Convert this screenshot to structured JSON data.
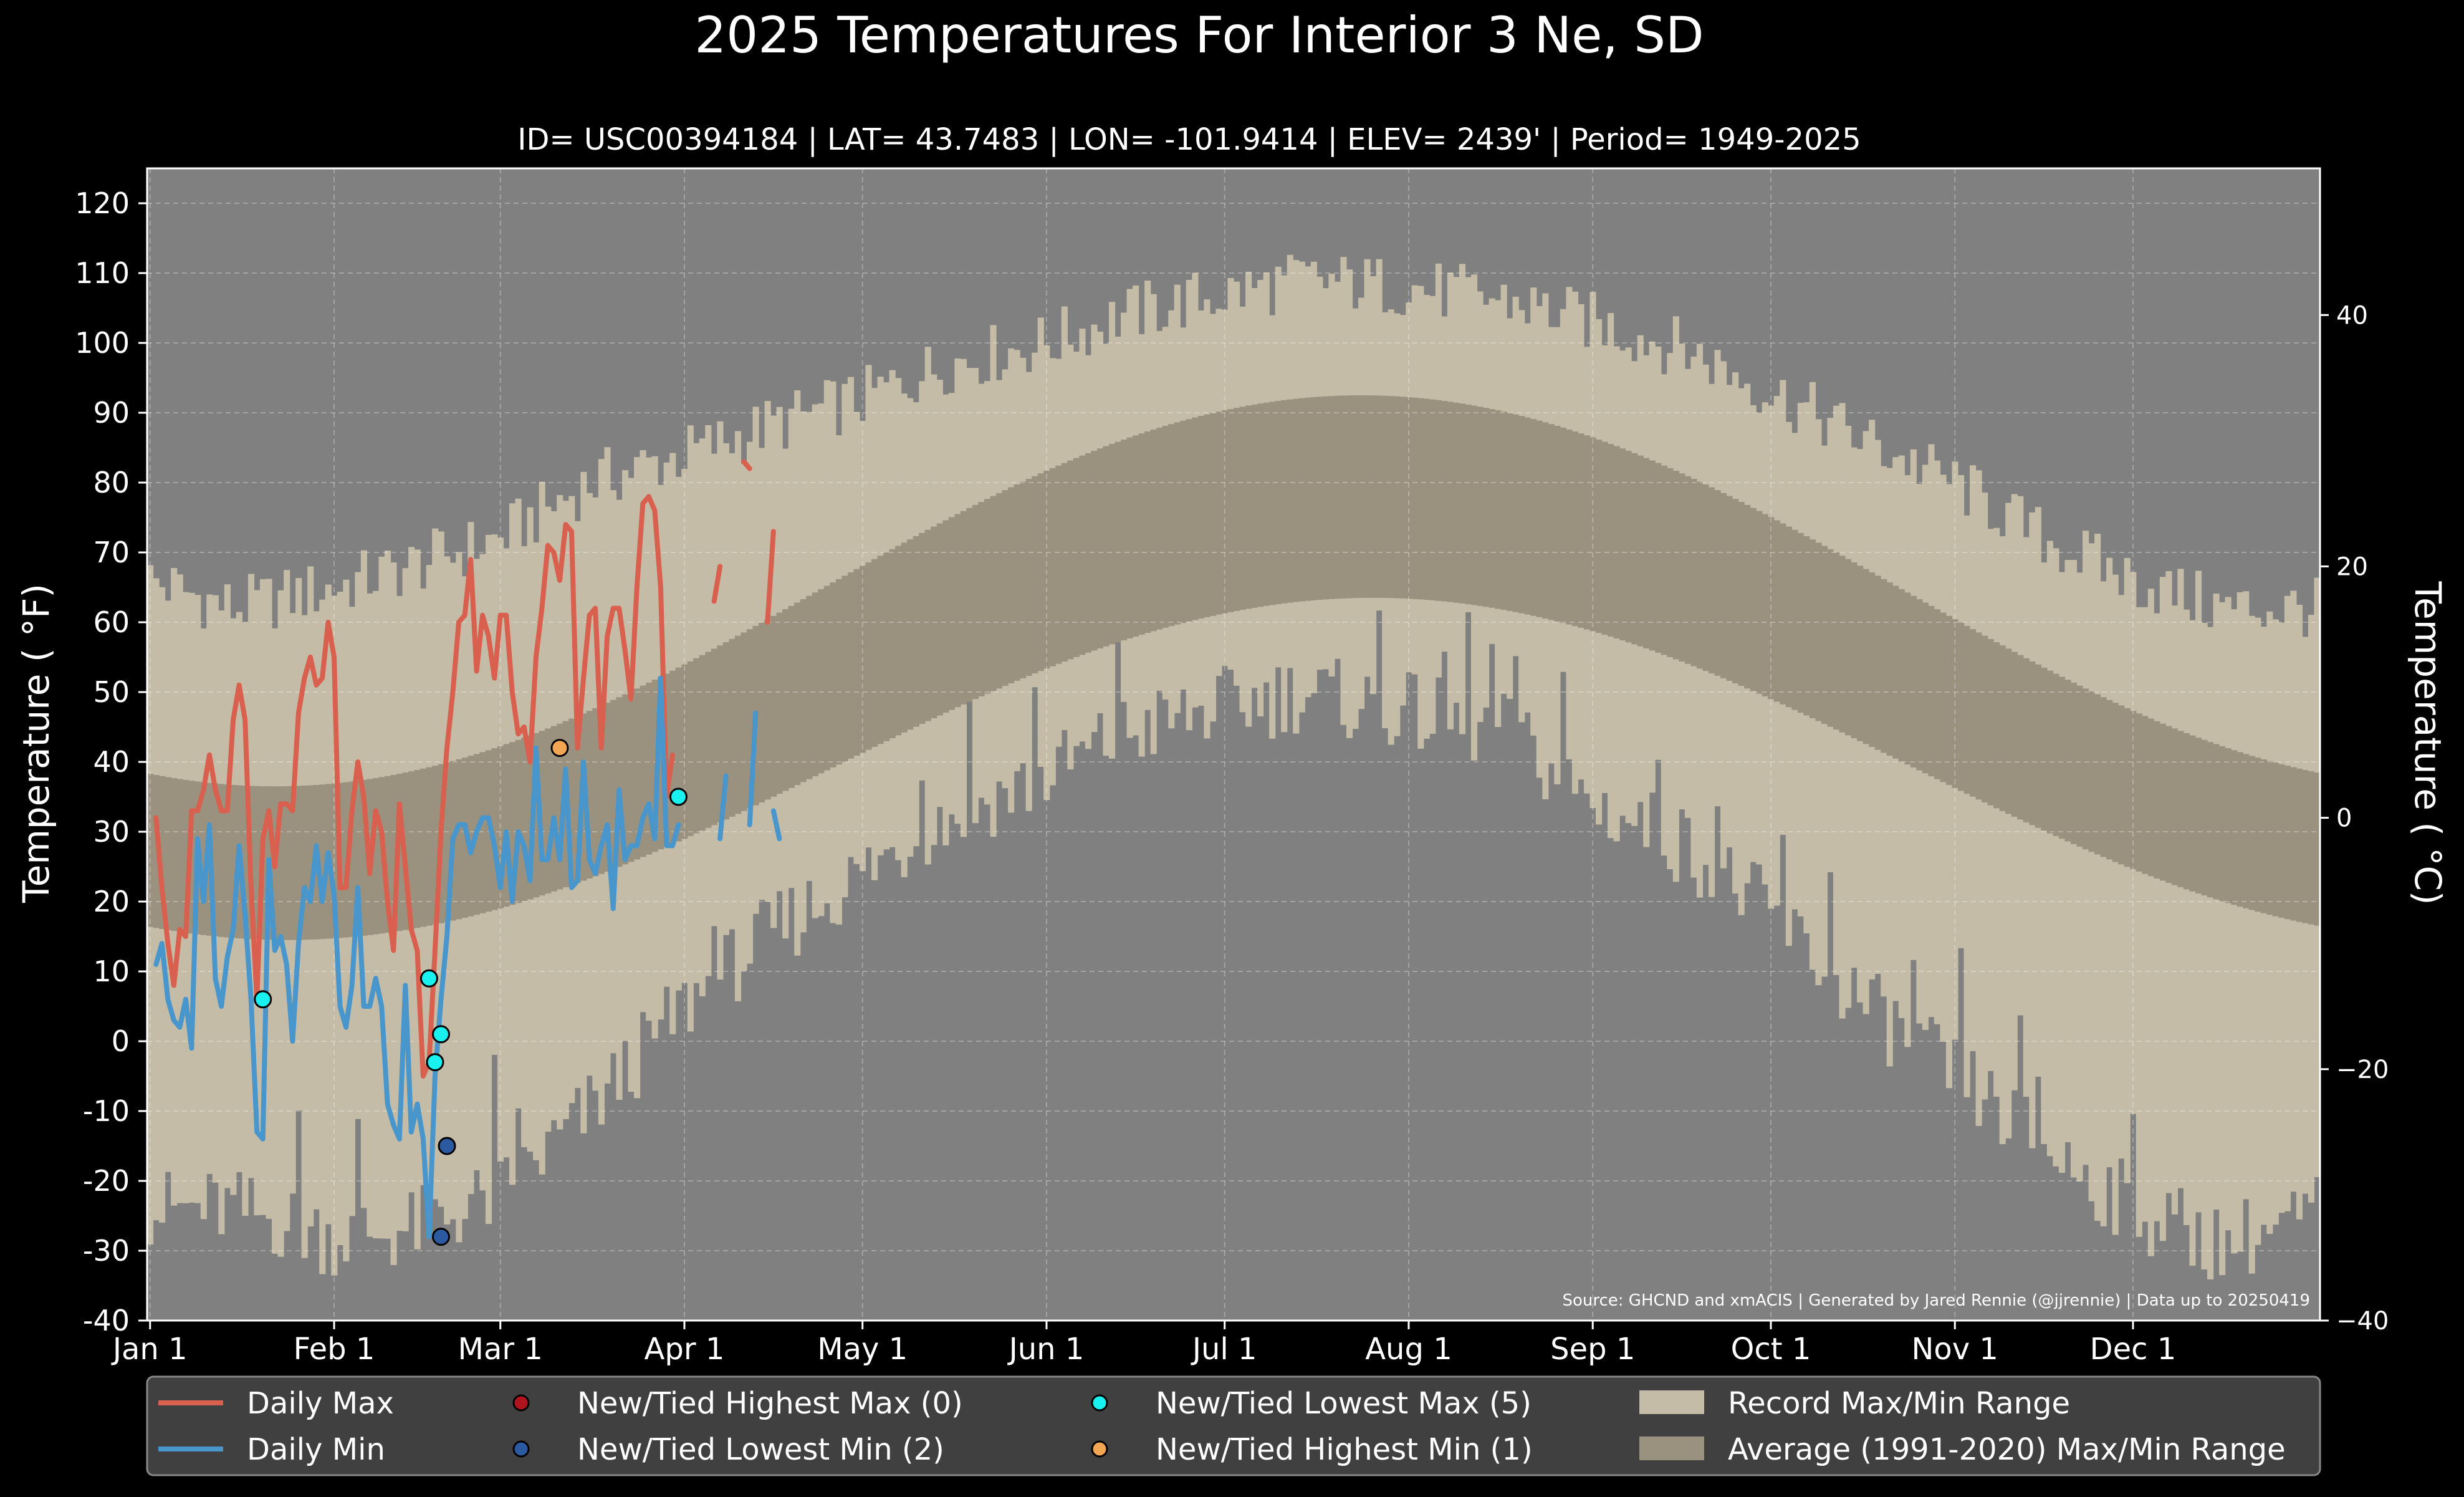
{
  "chart_data": {
    "type": "line",
    "title": "2025 Temperatures For Interior 3 Ne, SD",
    "subtitle": "ID= USC00394184 | LAT= 43.7483 | LON= -101.9414 | ELEV= 2439' | Period= 1949-2025",
    "ylabel_left": "Temperature ($^\\circ$F)",
    "ylabel_right": "Temperature ($^\\circ$C)",
    "ylim_f": [
      -40,
      125
    ],
    "ylim_c": [
      -40,
      51.67
    ],
    "xlim_day": [
      0.5,
      366.5
    ],
    "y_ticks_left": [
      -40,
      -30,
      -20,
      -10,
      0,
      10,
      20,
      30,
      40,
      50,
      60,
      70,
      80,
      90,
      100,
      110,
      120
    ],
    "y_ticks_right": [
      -40,
      -20,
      0,
      20,
      40
    ],
    "x_ticks": [
      {
        "label": "Jan 1",
        "day": 1
      },
      {
        "label": "Feb 1",
        "day": 32
      },
      {
        "label": "Mar 1",
        "day": 60
      },
      {
        "label": "Apr 1",
        "day": 91
      },
      {
        "label": "May 1",
        "day": 121
      },
      {
        "label": "Jun 1",
        "day": 152
      },
      {
        "label": "Jul 1",
        "day": 182
      },
      {
        "label": "Aug 1",
        "day": 213
      },
      {
        "label": "Sep 1",
        "day": 244
      },
      {
        "label": "Oct 1",
        "day": 274
      },
      {
        "label": "Nov 1",
        "day": 305
      },
      {
        "label": "Dec 1",
        "day": 335
      }
    ],
    "grid": true,
    "source_note": "Source: GHCND and xmACIS | Generated by Jared Rennie (@jjrennie) | Data up to 20250419",
    "record_max_anchors": [
      [
        1,
        66
      ],
      [
        15,
        62
      ],
      [
        32,
        65
      ],
      [
        45,
        68
      ],
      [
        60,
        72
      ],
      [
        75,
        80
      ],
      [
        91,
        84
      ],
      [
        105,
        88
      ],
      [
        121,
        92
      ],
      [
        135,
        97
      ],
      [
        152,
        100
      ],
      [
        165,
        104
      ],
      [
        182,
        107
      ],
      [
        195,
        109
      ],
      [
        213,
        108
      ],
      [
        230,
        106
      ],
      [
        244,
        103
      ],
      [
        260,
        99
      ],
      [
        274,
        93
      ],
      [
        290,
        86
      ],
      [
        305,
        80
      ],
      [
        320,
        72
      ],
      [
        335,
        66
      ],
      [
        350,
        62
      ],
      [
        366,
        62
      ]
    ],
    "record_min_anchors": [
      [
        1,
        -24
      ],
      [
        15,
        -24
      ],
      [
        32,
        -28
      ],
      [
        45,
        -27
      ],
      [
        60,
        -22
      ],
      [
        75,
        -10
      ],
      [
        91,
        5
      ],
      [
        105,
        15
      ],
      [
        121,
        24
      ],
      [
        135,
        32
      ],
      [
        152,
        38
      ],
      [
        165,
        44
      ],
      [
        182,
        48
      ],
      [
        195,
        50
      ],
      [
        213,
        47
      ],
      [
        230,
        44
      ],
      [
        244,
        34
      ],
      [
        260,
        28
      ],
      [
        274,
        18
      ],
      [
        290,
        5
      ],
      [
        305,
        -5
      ],
      [
        320,
        -15
      ],
      [
        335,
        -24
      ],
      [
        350,
        -29
      ],
      [
        366,
        -25
      ]
    ],
    "normal_max_params": {
      "mean": 64.5,
      "amp": 28.0,
      "peak_day": 205
    },
    "normal_min_params": {
      "mean": 39.0,
      "amp": 24.5,
      "peak_day": 207
    },
    "series": [
      {
        "name": "Daily Max",
        "color": "#d9604e",
        "segments": [
          [
            [
              2,
              32
            ],
            [
              3,
              22
            ],
            [
              4,
              14
            ],
            [
              5,
              8
            ],
            [
              6,
              16
            ],
            [
              7,
              15
            ],
            [
              8,
              33
            ],
            [
              9,
              33
            ],
            [
              10,
              36
            ],
            [
              11,
              41
            ],
            [
              12,
              36
            ],
            [
              13,
              33
            ],
            [
              14,
              33
            ],
            [
              15,
              46
            ],
            [
              16,
              51
            ],
            [
              17,
              46
            ],
            [
              18,
              22
            ],
            [
              19,
              6
            ],
            [
              20,
              29
            ],
            [
              21,
              33
            ],
            [
              22,
              25
            ],
            [
              23,
              34
            ],
            [
              24,
              34
            ],
            [
              25,
              33
            ],
            [
              26,
              47
            ],
            [
              27,
              52
            ],
            [
              28,
              55
            ],
            [
              29,
              51
            ],
            [
              30,
              52
            ],
            [
              31,
              60
            ],
            [
              32,
              55
            ],
            [
              33,
              22
            ],
            [
              34,
              22
            ],
            [
              35,
              33
            ],
            [
              36,
              40
            ],
            [
              37,
              35
            ],
            [
              38,
              24
            ],
            [
              39,
              33
            ],
            [
              40,
              30
            ],
            [
              41,
              20
            ],
            [
              42,
              13
            ],
            [
              43,
              34
            ],
            [
              44,
              25
            ],
            [
              45,
              16
            ],
            [
              46,
              13
            ],
            [
              47,
              -5
            ],
            [
              48,
              -3
            ],
            [
              49,
              13
            ],
            [
              50,
              30
            ],
            [
              51,
              42
            ],
            [
              52,
              50
            ],
            [
              53,
              60
            ],
            [
              54,
              61
            ],
            [
              55,
              69
            ],
            [
              56,
              53
            ],
            [
              57,
              61
            ],
            [
              58,
              58
            ],
            [
              59,
              52
            ],
            [
              60,
              61
            ],
            [
              61,
              61
            ],
            [
              62,
              50
            ],
            [
              63,
              44
            ],
            [
              64,
              45
            ],
            [
              65,
              40
            ],
            [
              66,
              55
            ],
            [
              67,
              62
            ],
            [
              68,
              71
            ],
            [
              69,
              70
            ],
            [
              70,
              66
            ],
            [
              71,
              74
            ],
            [
              72,
              73
            ],
            [
              73,
              42
            ],
            [
              74,
              52
            ],
            [
              75,
              61
            ],
            [
              76,
              62
            ],
            [
              77,
              42
            ],
            [
              78,
              58
            ],
            [
              79,
              62
            ],
            [
              80,
              62
            ],
            [
              81,
              56
            ],
            [
              82,
              49
            ],
            [
              83,
              65
            ],
            [
              84,
              77
            ],
            [
              85,
              78
            ],
            [
              86,
              76
            ],
            [
              87,
              65
            ],
            [
              88,
              35
            ],
            [
              89,
              41
            ]
          ],
          [
            [
              96,
              63
            ],
            [
              97,
              68
            ]
          ],
          [
            [
              101,
              83
            ],
            [
              102,
              82
            ]
          ],
          [
            [
              105,
              60
            ],
            [
              106,
              73
            ]
          ]
        ]
      },
      {
        "name": "Daily Min",
        "color": "#4896cc",
        "segments": [
          [
            [
              2,
              11
            ],
            [
              3,
              14
            ],
            [
              4,
              6
            ],
            [
              5,
              3
            ],
            [
              6,
              2
            ],
            [
              7,
              6
            ],
            [
              8,
              -1
            ],
            [
              9,
              29
            ],
            [
              10,
              20
            ],
            [
              11,
              31
            ],
            [
              12,
              9
            ],
            [
              13,
              5
            ],
            [
              14,
              12
            ],
            [
              15,
              16
            ],
            [
              16,
              28
            ],
            [
              17,
              18
            ],
            [
              18,
              6
            ],
            [
              19,
              -13
            ],
            [
              20,
              -14
            ],
            [
              21,
              26
            ],
            [
              22,
              13
            ],
            [
              23,
              15
            ],
            [
              24,
              11
            ],
            [
              25,
              0
            ],
            [
              26,
              14
            ],
            [
              27,
              22
            ],
            [
              28,
              20
            ],
            [
              29,
              28
            ],
            [
              30,
              20
            ],
            [
              31,
              27
            ],
            [
              32,
              21
            ],
            [
              33,
              5
            ],
            [
              34,
              2
            ],
            [
              35,
              8
            ],
            [
              36,
              22
            ],
            [
              37,
              5
            ],
            [
              38,
              5
            ],
            [
              39,
              9
            ],
            [
              40,
              5
            ],
            [
              41,
              -9
            ],
            [
              42,
              -12
            ],
            [
              43,
              -14
            ],
            [
              44,
              8
            ],
            [
              45,
              -13
            ],
            [
              46,
              -9
            ],
            [
              47,
              -14
            ],
            [
              48,
              -28
            ],
            [
              49,
              -5
            ],
            [
              50,
              6
            ],
            [
              51,
              15
            ],
            [
              52,
              29
            ],
            [
              53,
              31
            ],
            [
              54,
              31
            ],
            [
              55,
              27
            ],
            [
              56,
              30
            ],
            [
              57,
              32
            ],
            [
              58,
              32
            ],
            [
              59,
              28
            ],
            [
              60,
              22
            ],
            [
              61,
              30
            ],
            [
              62,
              20
            ],
            [
              63,
              30
            ],
            [
              64,
              28
            ],
            [
              65,
              23
            ],
            [
              66,
              42
            ],
            [
              67,
              26
            ],
            [
              68,
              26
            ],
            [
              69,
              32
            ],
            [
              70,
              26
            ],
            [
              71,
              39
            ],
            [
              72,
              22
            ],
            [
              73,
              23
            ],
            [
              74,
              40
            ],
            [
              75,
              26
            ],
            [
              76,
              24
            ],
            [
              77,
              28
            ],
            [
              78,
              31
            ],
            [
              79,
              19
            ],
            [
              80,
              36
            ],
            [
              81,
              26
            ],
            [
              82,
              28
            ],
            [
              83,
              28
            ],
            [
              84,
              32
            ],
            [
              85,
              34
            ],
            [
              86,
              29
            ],
            [
              87,
              52
            ],
            [
              88,
              28
            ],
            [
              89,
              28
            ],
            [
              90,
              31
            ]
          ],
          [
            [
              97,
              29
            ],
            [
              98,
              38
            ]
          ],
          [
            [
              102,
              31
            ],
            [
              103,
              47
            ]
          ],
          [
            [
              106,
              33
            ],
            [
              107,
              29
            ]
          ]
        ]
      }
    ],
    "markers": [
      {
        "name": "New/Tied Highest Max",
        "count": 0,
        "color": "#b0141e",
        "points": []
      },
      {
        "name": "New/Tied Lowest Min",
        "count": 2,
        "color": "#2b5aa0",
        "points": [
          [
            51,
            -15
          ],
          [
            50,
            -28
          ]
        ]
      },
      {
        "name": "New/Tied Lowest Max",
        "count": 5,
        "color": "#19f0f0",
        "points": [
          [
            20,
            6
          ],
          [
            48,
            9
          ],
          [
            49,
            -3
          ],
          [
            50,
            1
          ],
          [
            90,
            35
          ]
        ]
      },
      {
        "name": "New/Tied Highest Min",
        "count": 1,
        "color": "#f2a552",
        "points": [
          [
            70,
            42
          ]
        ]
      }
    ],
    "legend": {
      "placement": "bottom",
      "items": [
        {
          "label": "Daily Max",
          "kind": "line",
          "color": "#d9604e"
        },
        {
          "label": "New/Tied Highest Max (0)",
          "kind": "dot",
          "color": "#b0141e"
        },
        {
          "label": "New/Tied Lowest Max (5)",
          "kind": "dot",
          "color": "#19f0f0"
        },
        {
          "label": "Record Max/Min Range",
          "kind": "patch",
          "color": "#c4bca6"
        },
        {
          "label": "Daily Min",
          "kind": "line",
          "color": "#4896cc"
        },
        {
          "label": "New/Tied Lowest Min (2)",
          "kind": "dot",
          "color": "#2b5aa0"
        },
        {
          "label": "New/Tied Highest Min (1)",
          "kind": "dot",
          "color": "#f2a552"
        },
        {
          "label": "Average (1991-2020) Max/Min Range",
          "kind": "patch",
          "color": "#9a917f"
        }
      ]
    },
    "colors": {
      "background": "#000000",
      "plot_background": "#808080",
      "record_range": "#c4bca6",
      "average_range": "#9a917f",
      "legend_background": "#404040"
    }
  }
}
